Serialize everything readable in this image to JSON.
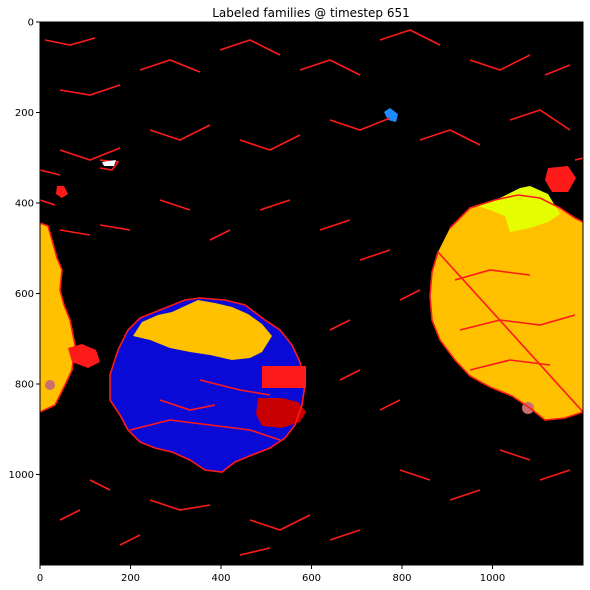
{
  "title": "Labeled families @ timestep 651",
  "x_axis": {
    "ticks": [
      {
        "value": 0,
        "label": "0"
      },
      {
        "value": 200,
        "label": "200"
      },
      {
        "value": 400,
        "label": "400"
      },
      {
        "value": 600,
        "label": "600"
      },
      {
        "value": 800,
        "label": "800"
      },
      {
        "value": 1000,
        "label": "1000"
      }
    ],
    "range": [
      0,
      1200
    ]
  },
  "y_axis": {
    "ticks": [
      {
        "value": 0,
        "label": "0"
      },
      {
        "value": 200,
        "label": "200"
      },
      {
        "value": 400,
        "label": "400"
      },
      {
        "value": 600,
        "label": "600"
      },
      {
        "value": 800,
        "label": "800"
      },
      {
        "value": 1000,
        "label": "1000"
      }
    ],
    "range": [
      0,
      1200
    ],
    "inverted": true
  },
  "colors": {
    "background": "#000000",
    "orange_family": "#ffc000",
    "blue_family": "#0a0ad6",
    "red_edges": "#ff1a1a",
    "dark_red_family": "#c80000",
    "yellow_family": "#e6ff00",
    "light_blue_family": "#1e8cff",
    "pink_family": "#c87070"
  }
}
